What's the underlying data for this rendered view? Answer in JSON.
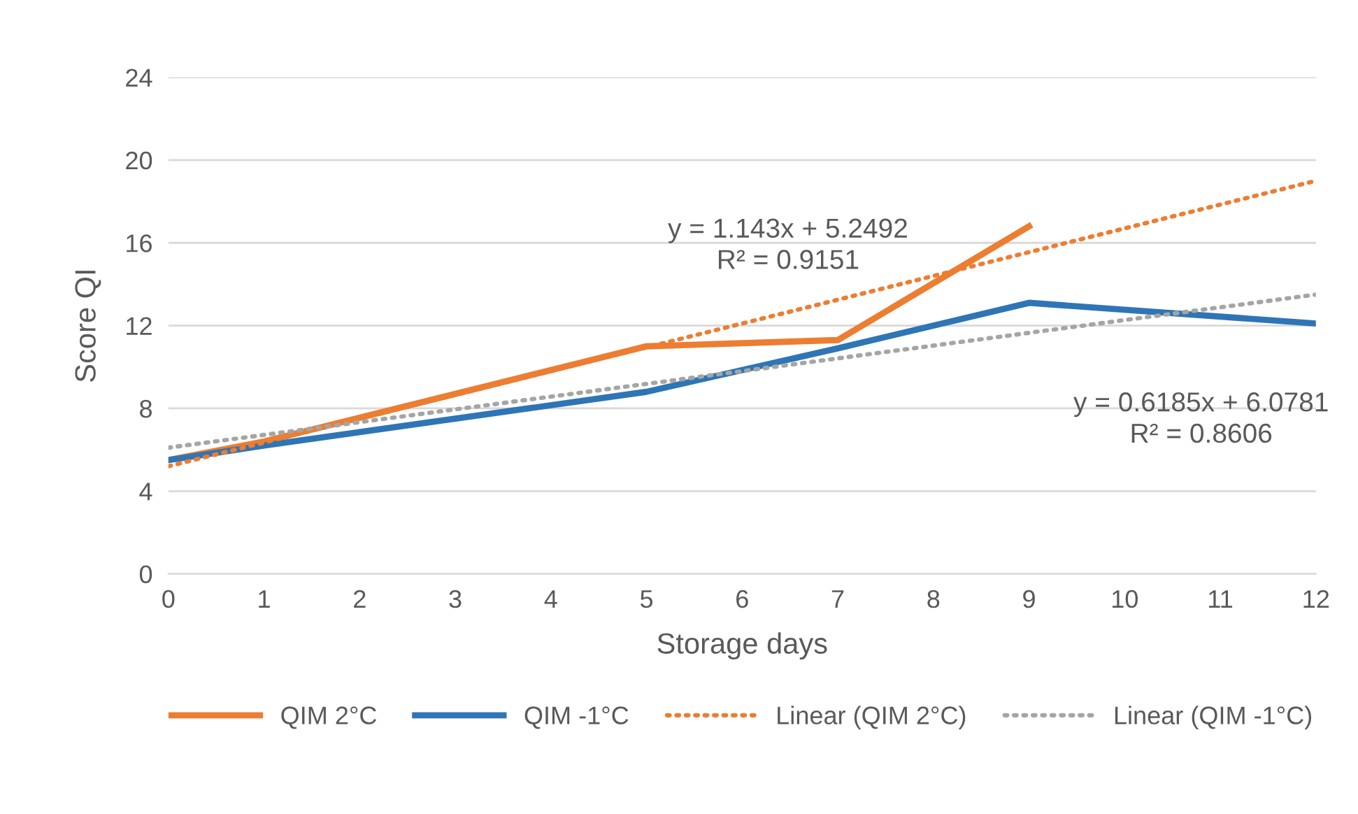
{
  "chart_data": {
    "type": "line",
    "xlabel": "Storage days",
    "ylabel": "Score QI",
    "xlim": [
      0,
      12
    ],
    "xticks": [
      0,
      1,
      2,
      3,
      4,
      5,
      6,
      7,
      8,
      9,
      10,
      11,
      12
    ],
    "ylim": [
      0,
      24
    ],
    "yticks": [
      0,
      4,
      8,
      12,
      16,
      20,
      24
    ],
    "grid": "y",
    "legend": "bottom",
    "line_style": "solid",
    "marker": "none",
    "series": [
      {
        "name": "QIM 2°C",
        "color": "#ed7d31",
        "x": [
          0,
          1,
          5,
          7,
          9
        ],
        "values": [
          5.5,
          6.4,
          11.0,
          11.3,
          16.8
        ]
      },
      {
        "name": "QIM -1°C",
        "color": "#2e75b6",
        "x": [
          0,
          1,
          5,
          7,
          9,
          12
        ],
        "values": [
          5.5,
          6.2,
          8.8,
          10.9,
          13.1,
          12.1
        ]
      },
      {
        "name": "Linear (QIM 2°C)",
        "color": "#ed7d31",
        "line_style": "dotted",
        "x": [
          0,
          12
        ],
        "values": [
          5.2,
          19.0
        ]
      },
      {
        "name": "Linear (QIM -1°C)",
        "color": "#a5a5a5",
        "line_style": "dotted",
        "x": [
          0,
          12
        ],
        "values": [
          6.1,
          13.5
        ]
      }
    ],
    "annotations": [
      "y = 1.143x + 5.2492\nR² = 0.9151",
      "y = 0.6185x + 6.0781\nR² = 0.8606"
    ]
  }
}
